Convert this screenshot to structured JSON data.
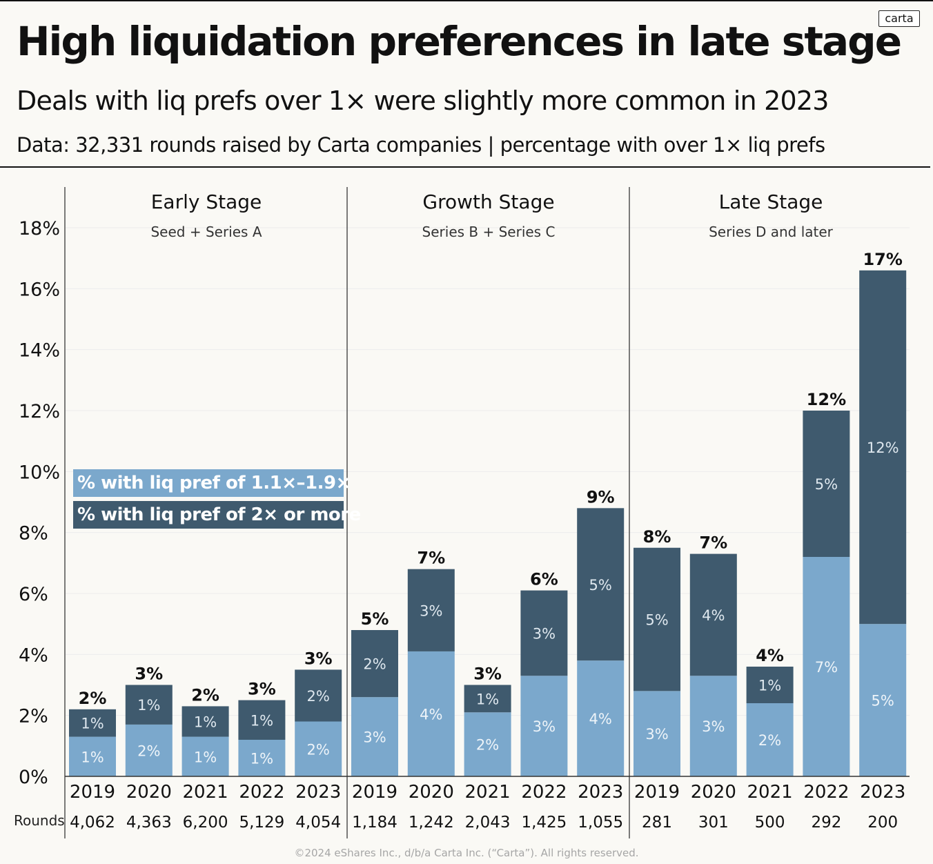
{
  "header": {
    "title": "High liquidation preferences in late stage",
    "subtitle": "Deals with liq prefs over 1× were slightly more common in 2023",
    "data_note": "Data:  32,331 rounds raised by Carta companies | percentage with over 1× liq prefs",
    "brand": "carta"
  },
  "legend": {
    "light": "% with liq pref of 1.1×–1.9×",
    "dark": "% with liq pref of 2× or more"
  },
  "footer": "©2024 eShares Inc., d/b/a Carta Inc. (“Carta”). All rights reserved.",
  "colors": {
    "light": "#7ba8cc",
    "dark": "#3f5a6e",
    "background": "#faf9f5"
  },
  "chart_data": {
    "type": "bar",
    "stacked": true,
    "ylim": [
      0,
      18
    ],
    "yticks": [
      "0%",
      "2%",
      "4%",
      "6%",
      "8%",
      "10%",
      "12%",
      "14%",
      "16%",
      "18%"
    ],
    "rounds_label": "Rounds",
    "groups": [
      {
        "name": "Early Stage",
        "subtitle": "Seed + Series A",
        "bars": [
          {
            "year": "2019",
            "light": 1.3,
            "dark": 0.9,
            "light_label": "1%",
            "dark_label": "1%",
            "total_label": "2%",
            "rounds": "4,062"
          },
          {
            "year": "2020",
            "light": 1.7,
            "dark": 1.3,
            "light_label": "2%",
            "dark_label": "1%",
            "total_label": "3%",
            "rounds": "4,363"
          },
          {
            "year": "2021",
            "light": 1.3,
            "dark": 1.0,
            "light_label": "1%",
            "dark_label": "1%",
            "total_label": "2%",
            "rounds": "6,200"
          },
          {
            "year": "2022",
            "light": 1.2,
            "dark": 1.3,
            "light_label": "1%",
            "dark_label": "1%",
            "total_label": "3%",
            "rounds": "5,129"
          },
          {
            "year": "2023",
            "light": 1.8,
            "dark": 1.7,
            "light_label": "2%",
            "dark_label": "2%",
            "total_label": "3%",
            "rounds": "4,054"
          }
        ]
      },
      {
        "name": "Growth Stage",
        "subtitle": "Series B + Series C",
        "bars": [
          {
            "year": "2019",
            "light": 2.6,
            "dark": 2.2,
            "light_label": "3%",
            "dark_label": "2%",
            "total_label": "5%",
            "rounds": "1,184"
          },
          {
            "year": "2020",
            "light": 4.1,
            "dark": 2.7,
            "light_label": "4%",
            "dark_label": "3%",
            "total_label": "7%",
            "rounds": "1,242"
          },
          {
            "year": "2021",
            "light": 2.1,
            "dark": 0.9,
            "light_label": "2%",
            "dark_label": "1%",
            "total_label": "3%",
            "rounds": "2,043"
          },
          {
            "year": "2022",
            "light": 3.3,
            "dark": 2.8,
            "light_label": "3%",
            "dark_label": "3%",
            "total_label": "6%",
            "rounds": "1,425"
          },
          {
            "year": "2023",
            "light": 3.8,
            "dark": 5.0,
            "light_label": "4%",
            "dark_label": "5%",
            "total_label": "9%",
            "rounds": "1,055"
          }
        ]
      },
      {
        "name": "Late Stage",
        "subtitle": "Series D and later",
        "bars": [
          {
            "year": "2019",
            "light": 2.8,
            "dark": 4.7,
            "light_label": "3%",
            "dark_label": "5%",
            "total_label": "8%",
            "rounds": "281"
          },
          {
            "year": "2020",
            "light": 3.3,
            "dark": 4.0,
            "light_label": "3%",
            "dark_label": "4%",
            "total_label": "7%",
            "rounds": "301"
          },
          {
            "year": "2021",
            "light": 2.4,
            "dark": 1.2,
            "light_label": "2%",
            "dark_label": "1%",
            "total_label": "4%",
            "rounds": "500"
          },
          {
            "year": "2022",
            "light": 7.2,
            "dark": 4.8,
            "light_label": "7%",
            "dark_label": "5%",
            "total_label": "12%",
            "rounds": "292"
          },
          {
            "year": "2023",
            "light": 5.0,
            "dark": 11.6,
            "light_label": "5%",
            "dark_label": "12%",
            "total_label": "17%",
            "rounds": "200"
          }
        ]
      }
    ]
  }
}
